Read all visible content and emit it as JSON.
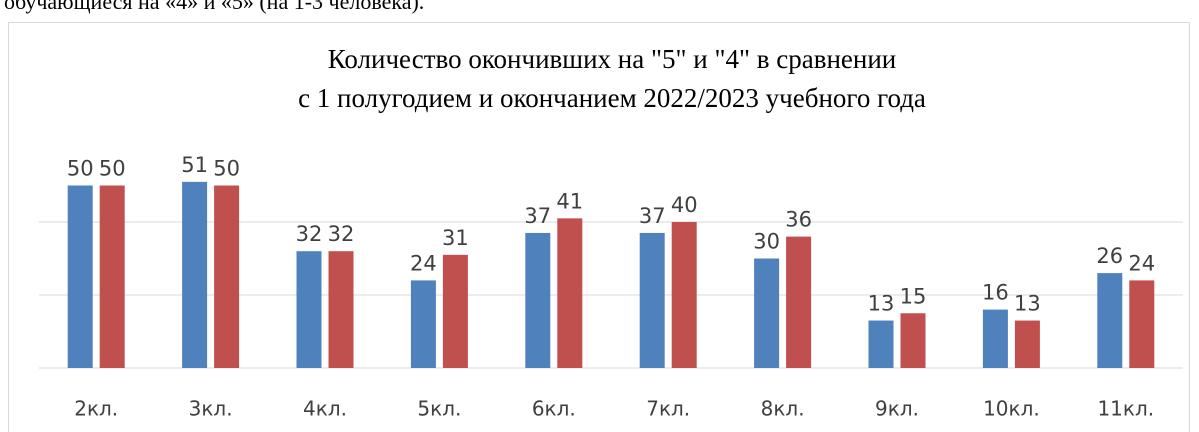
{
  "header": {
    "text": "обучающиеся на «4» и «5» (на 1-3 человека)."
  },
  "chart_data": {
    "type": "bar",
    "title": [
      "Количество окончивших на \"5\" и \"4\" в сравнении",
      "с 1 полугодием и окончанием 2022/2023 учебного года"
    ],
    "categories": [
      "2кл.",
      "3кл.",
      "4кл.",
      "5кл.",
      "6кл.",
      "7кл.",
      "8кл.",
      "9кл.",
      "10кл.",
      "11кл."
    ],
    "series": [
      {
        "color": "#4f81bd",
        "values": [
          50,
          51,
          32,
          24,
          37,
          37,
          30,
          13,
          16,
          26
        ]
      },
      {
        "color": "#c0504d",
        "values": [
          50,
          50,
          32,
          31,
          41,
          40,
          36,
          15,
          13,
          24
        ]
      }
    ],
    "ylim": [
      0,
      60
    ],
    "yticks": [
      0,
      20,
      40
    ],
    "grid": true
  }
}
